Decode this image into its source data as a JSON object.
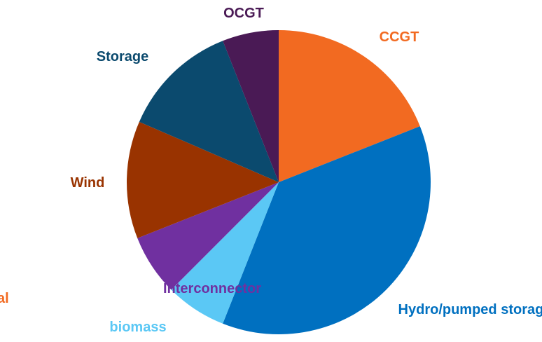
{
  "chart_data": {
    "type": "pie",
    "categories": [
      "CCGT",
      "Hydro/pumped storage",
      "biomass",
      "Interconnector",
      "Wind",
      "Storage",
      "OCGT",
      "al"
    ],
    "values": [
      19,
      37,
      6.5,
      6.5,
      12.5,
      12.5,
      6,
      0
    ],
    "colors": [
      "#f26a21",
      "#0070c0",
      "#5bc8f5",
      "#7030a0",
      "#993300",
      "#0b4a6e",
      "#4a1a55",
      "#f26a21"
    ]
  }
}
